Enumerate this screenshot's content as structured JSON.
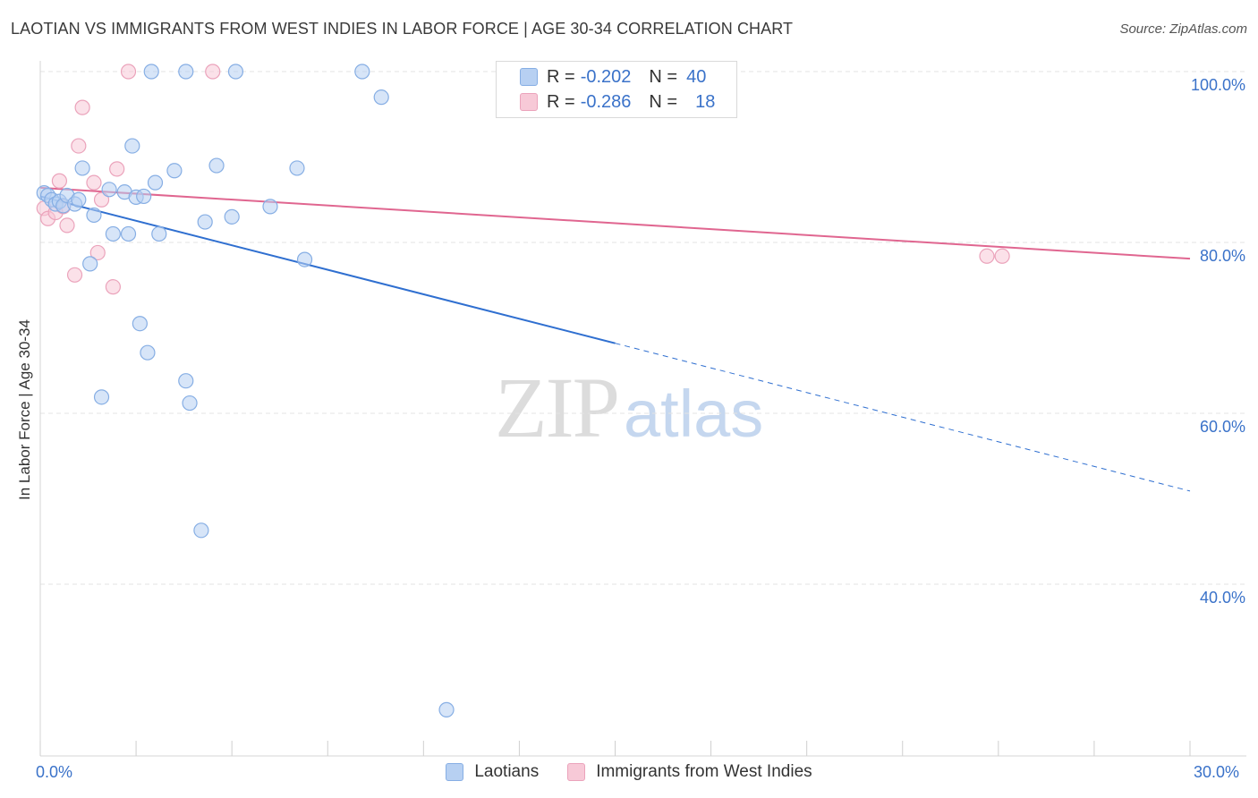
{
  "title": "LAOTIAN VS IMMIGRANTS FROM WEST INDIES IN LABOR FORCE | AGE 30-34 CORRELATION CHART",
  "source": "Source: ZipAtlas.com",
  "watermark": {
    "part1": "ZIP",
    "part2": "atlas"
  },
  "legend": {
    "rows": [
      {
        "r_label": "R =",
        "r_value": "-0.202",
        "n_label": "N =",
        "n_value": "40"
      },
      {
        "r_label": "R =",
        "r_value": "-0.286",
        "n_label": "N =",
        "n_value": "18"
      }
    ]
  },
  "colors": {
    "blue_fill": "#b7d0f2",
    "blue_stroke": "#86aee4",
    "blue_line": "#2f6fd0",
    "pink_fill": "#f7c9d7",
    "pink_stroke": "#eba3bb",
    "pink_line": "#e06690",
    "grid": "#e3e3e3",
    "tick_label": "#3a72c9"
  },
  "chart_data": {
    "type": "scatter",
    "title": "LAOTIAN VS IMMIGRANTS FROM WEST INDIES IN LABOR FORCE | AGE 30-34 CORRELATION CHART",
    "xlabel": "",
    "ylabel": "In Labor Force | Age 30-34",
    "xlim": [
      0,
      30
    ],
    "ylim": [
      20,
      102
    ],
    "x_tick_labels": [
      "0.0%",
      "30.0%"
    ],
    "y_ticks": [
      100,
      80,
      60,
      40
    ],
    "y_tick_labels": [
      "100.0%",
      "80.0%",
      "60.0%",
      "40.0%"
    ],
    "grid": true,
    "legend_position": "top-center",
    "series": [
      {
        "name": "Laotians",
        "r": -0.202,
        "n": 40,
        "points": [
          [
            0.1,
            85.8
          ],
          [
            0.2,
            85.5
          ],
          [
            0.3,
            85.0
          ],
          [
            0.4,
            84.5
          ],
          [
            0.5,
            84.8
          ],
          [
            0.6,
            84.3
          ],
          [
            0.7,
            85.5
          ],
          [
            0.9,
            84.5
          ],
          [
            1.0,
            85.0
          ],
          [
            1.1,
            88.7
          ],
          [
            1.3,
            77.5
          ],
          [
            1.4,
            83.2
          ],
          [
            1.8,
            86.2
          ],
          [
            1.9,
            81.0
          ],
          [
            2.2,
            85.9
          ],
          [
            2.3,
            81.0
          ],
          [
            2.4,
            91.3
          ],
          [
            2.5,
            85.3
          ],
          [
            2.6,
            70.5
          ],
          [
            2.7,
            85.4
          ],
          [
            2.8,
            67.1
          ],
          [
            2.9,
            100.0
          ],
          [
            3.0,
            87.0
          ],
          [
            3.1,
            81.0
          ],
          [
            3.5,
            88.4
          ],
          [
            3.8,
            100.0
          ],
          [
            3.8,
            63.8
          ],
          [
            3.9,
            61.2
          ],
          [
            4.2,
            46.3
          ],
          [
            4.3,
            82.4
          ],
          [
            4.6,
            89.0
          ],
          [
            5.0,
            83.0
          ],
          [
            5.1,
            100.0
          ],
          [
            6.0,
            84.2
          ],
          [
            6.7,
            88.7
          ],
          [
            6.9,
            78.0
          ],
          [
            8.4,
            100.0
          ],
          [
            8.9,
            97.0
          ],
          [
            10.6,
            25.3
          ],
          [
            1.6,
            61.9
          ]
        ],
        "trend": {
          "x": [
            0,
            15
          ],
          "y": [
            85.4,
            68.2
          ]
        },
        "trend_extension": {
          "x": [
            15,
            30
          ],
          "y": [
            68.2,
            50.9
          ]
        }
      },
      {
        "name": "Immigrants from West Indies",
        "r": -0.286,
        "n": 18,
        "points": [
          [
            0.1,
            84.0
          ],
          [
            0.2,
            82.8
          ],
          [
            0.4,
            83.5
          ],
          [
            0.5,
            87.2
          ],
          [
            0.6,
            84.2
          ],
          [
            0.7,
            82.0
          ],
          [
            0.9,
            76.2
          ],
          [
            1.0,
            91.3
          ],
          [
            1.1,
            95.8
          ],
          [
            1.4,
            87.0
          ],
          [
            1.5,
            78.8
          ],
          [
            1.6,
            85.0
          ],
          [
            1.9,
            74.8
          ],
          [
            2.0,
            88.6
          ],
          [
            2.3,
            100.0
          ],
          [
            4.5,
            100.0
          ],
          [
            24.7,
            78.4
          ],
          [
            25.1,
            78.4
          ]
        ],
        "trend": {
          "x": [
            0,
            30
          ],
          "y": [
            86.4,
            78.1
          ]
        }
      }
    ]
  }
}
